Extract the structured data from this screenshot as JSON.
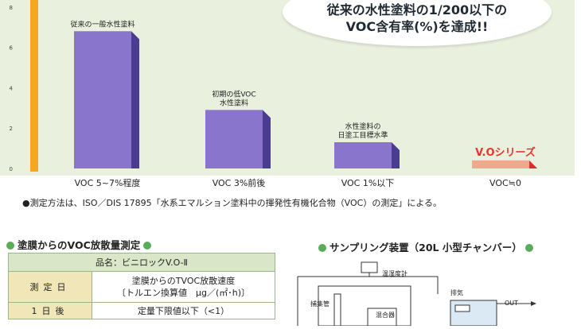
{
  "chart_data": {
    "type": "bar",
    "categories": [
      "VOC 5~7%程度",
      "VOC 3%前後",
      "VOC 1%以下",
      "VOC≒0"
    ],
    "values": [
      6.8,
      2.9,
      1.3,
      0.4
    ],
    "bar_labels": [
      [
        "従来の一般水性塗料"
      ],
      [
        "初期の低VOC",
        "水性塗料"
      ],
      [
        "水性塗料の",
        "日塗工目標水準"
      ],
      [
        "V.Oシリーズ"
      ]
    ],
    "yticks": [
      0,
      2,
      4,
      6,
      8
    ],
    "ylim": [
      0,
      8.2
    ],
    "colors": {
      "bar": "#8a75cc",
      "bar_side": "#4a3b93",
      "highlight": "#f3a88d",
      "highlight_side": "#e02b2b",
      "highlight_text": "#e8352c"
    }
  },
  "bubble": {
    "line1": "従来の水性塗料の1/200以下の",
    "line2": "VOC含有率(%)を達成!!"
  },
  "note": "●測定方法は、ISO／DIS 17895「水系エマルション塗料中の揮発性有機化合物（VOC）の測定」による。",
  "emission_section": {
    "title": "塗膜からのVOC放散量測定",
    "product": "品名：ビニロックV.O-Ⅱ",
    "header_label": "測定日",
    "header_value_1": "塗膜からのTVOC放散速度",
    "header_value_2": "〔トルエン換算値　μg／(㎡･h)〕",
    "rows": [
      {
        "label": "1日後",
        "value": "定量下限値以下（<1）"
      }
    ]
  },
  "apparatus_section": {
    "title": "サンプリング装置（20L 小型チャンバー）",
    "labels": {
      "thermo": "温湿度計",
      "exhaust": "排気",
      "out": "OUT",
      "trap": "捕集管",
      "mixer": "混合器"
    }
  }
}
